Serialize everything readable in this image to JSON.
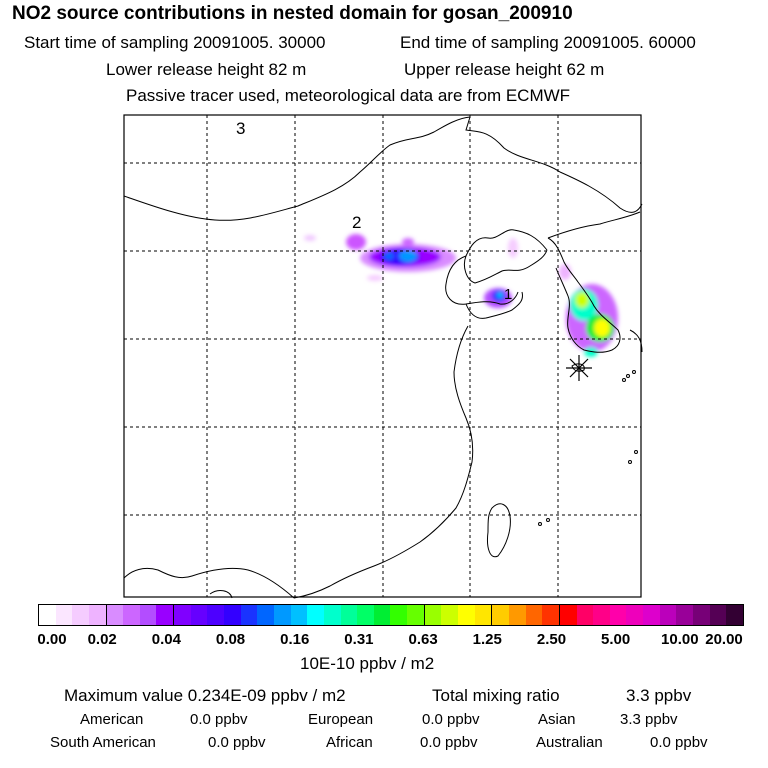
{
  "header": {
    "title": "NO2 source contributions in nested domain for gosan_200910",
    "start_time": "Start time of sampling 20091005. 30000",
    "end_time": "End time of sampling 20091005. 60000",
    "lower_release": "Lower release height   82 m",
    "upper_release": "Upper release height   62 m",
    "tracer_note": "Passive tracer used, meteorological data are from ECMWF"
  },
  "map": {
    "labels": {
      "one": "1",
      "two": "2",
      "three": "3"
    },
    "colors": {
      "frame": "#000000",
      "grid": "#000000",
      "coast": "#000000",
      "marker": "#000000"
    }
  },
  "colorbar": {
    "ticks": [
      "0.00",
      "0.02",
      "0.04",
      "0.08",
      "0.16",
      "0.31",
      "0.63",
      "1.25",
      "2.50",
      "5.00",
      "10.00",
      "20.00"
    ],
    "colors": [
      "#ffffff",
      "#fbe6ff",
      "#f5ccff",
      "#eeb3ff",
      "#d98cff",
      "#cc66ff",
      "#b34dff",
      "#9900ff",
      "#8000ff",
      "#6600ff",
      "#4d00ff",
      "#3300ff",
      "#1a33ff",
      "#0066ff",
      "#0099ff",
      "#00c0ff",
      "#00ffff",
      "#00ffcc",
      "#00ff99",
      "#00ff66",
      "#00ee33",
      "#33ff00",
      "#66ff00",
      "#99ff00",
      "#ccff00",
      "#ffff00",
      "#ffe600",
      "#ffcc00",
      "#ff9900",
      "#ff6600",
      "#ff3300",
      "#ff0000",
      "#ff0066",
      "#ff0088",
      "#ff00aa",
      "#ee00bb",
      "#dd00cc",
      "#bb00bb",
      "#990099",
      "#770077",
      "#550055",
      "#330033"
    ],
    "unit_label": "10E-10 ppbv / m2"
  },
  "summary": {
    "max_value": "Maximum value  0.234E-09 ppbv / m2",
    "total_label": "Total mixing ratio",
    "total_value": "3.3 ppbv",
    "regions": [
      {
        "name": "American",
        "value": "0.0 ppbv"
      },
      {
        "name": "European",
        "value": "0.0 ppbv"
      },
      {
        "name": "Asian",
        "value": "3.3 ppbv"
      },
      {
        "name": "South American",
        "value": "0.0 ppbv"
      },
      {
        "name": "African",
        "value": "0.0 ppbv"
      },
      {
        "name": "Australian",
        "value": "0.0 ppbv"
      }
    ]
  }
}
